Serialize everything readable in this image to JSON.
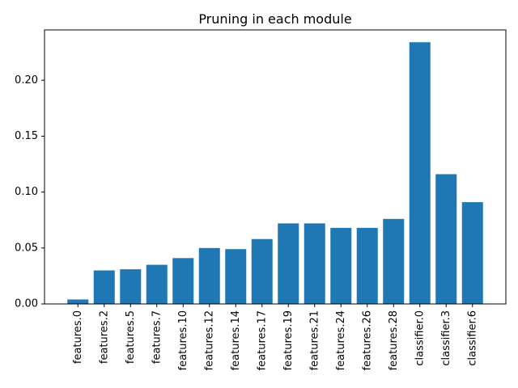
{
  "chart_data": {
    "type": "bar",
    "title": "Pruning in each module",
    "xlabel": "",
    "ylabel": "",
    "categories": [
      "features.0",
      "features.2",
      "features.5",
      "features.7",
      "features.10",
      "features.12",
      "features.14",
      "features.17",
      "features.19",
      "features.21",
      "features.24",
      "features.26",
      "features.28",
      "classifier.0",
      "classifier.3",
      "classifier.6"
    ],
    "values": [
      0.004,
      0.03,
      0.031,
      0.035,
      0.041,
      0.05,
      0.049,
      0.058,
      0.072,
      0.072,
      0.068,
      0.068,
      0.076,
      0.234,
      0.116,
      0.091
    ],
    "ylim": [
      0,
      0.245
    ],
    "yticks": [
      "0.00",
      "0.05",
      "0.10",
      "0.15",
      "0.20"
    ],
    "bar_color": "#1f77b4",
    "grid": false,
    "legend": "none"
  }
}
